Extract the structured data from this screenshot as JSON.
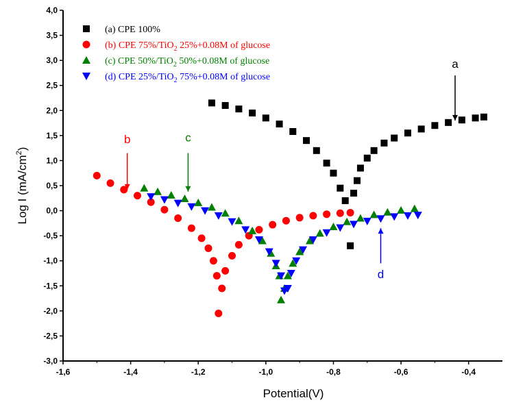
{
  "chart_data": {
    "type": "scatter",
    "xlabel": "Potential(V)",
    "ylabel_main": "Log I (mA/cm",
    "ylabel_sup": "2",
    "ylabel_close": ")",
    "xlim": [
      -1.6,
      -0.3
    ],
    "ylim": [
      -3.0,
      4.0
    ],
    "x_ticks": [
      -1.6,
      -1.4,
      -1.2,
      -1.0,
      -0.8,
      -0.6,
      -0.4
    ],
    "x_tick_labels": [
      "-1,6",
      "-1,4",
      "-1,2",
      "-1,0",
      "-0,8",
      "-0,6",
      "-0,4"
    ],
    "y_ticks": [
      -3.0,
      -2.5,
      -2.0,
      -1.5,
      -1.0,
      -0.5,
      0.0,
      0.5,
      1.0,
      1.5,
      2.0,
      2.5,
      3.0,
      3.5,
      4.0
    ],
    "y_tick_labels": [
      "-3,0",
      "-2,5",
      "-2,0",
      "-1,5",
      "-1,0",
      "-0,5",
      "0,0",
      "0,5",
      "1,0",
      "1,5",
      "2,0",
      "2,5",
      "3,0",
      "3,5",
      "4,0"
    ],
    "grid": false,
    "legend_position": "top-left",
    "series": [
      {
        "id": "a",
        "legend_prefix": "(a) CPE 100%",
        "legend_sub": "",
        "legend_suffix": "",
        "color": "#000000",
        "marker": "square",
        "points": [
          [
            -1.16,
            2.15
          ],
          [
            -1.12,
            2.1
          ],
          [
            -1.08,
            2.03
          ],
          [
            -1.04,
            1.95
          ],
          [
            -1.0,
            1.85
          ],
          [
            -0.96,
            1.73
          ],
          [
            -0.92,
            1.58
          ],
          [
            -0.88,
            1.4
          ],
          [
            -0.85,
            1.2
          ],
          [
            -0.82,
            0.95
          ],
          [
            -0.8,
            0.75
          ],
          [
            -0.78,
            0.45
          ],
          [
            -0.765,
            0.2
          ],
          [
            -0.75,
            -0.7
          ],
          [
            -0.74,
            0.35
          ],
          [
            -0.73,
            0.6
          ],
          [
            -0.72,
            0.85
          ],
          [
            -0.7,
            1.05
          ],
          [
            -0.68,
            1.2
          ],
          [
            -0.65,
            1.35
          ],
          [
            -0.62,
            1.45
          ],
          [
            -0.58,
            1.55
          ],
          [
            -0.54,
            1.63
          ],
          [
            -0.5,
            1.7
          ],
          [
            -0.46,
            1.76
          ],
          [
            -0.42,
            1.81
          ],
          [
            -0.38,
            1.85
          ],
          [
            -0.355,
            1.87
          ]
        ]
      },
      {
        "id": "b",
        "legend_prefix": "(b) CPE 75%/TiO",
        "legend_sub": "2",
        "legend_suffix": " 25%+0.08M of glucose",
        "color": "#ff0000",
        "marker": "circle",
        "points": [
          [
            -1.5,
            0.7
          ],
          [
            -1.46,
            0.55
          ],
          [
            -1.42,
            0.42
          ],
          [
            -1.38,
            0.3
          ],
          [
            -1.34,
            0.17
          ],
          [
            -1.3,
            0.02
          ],
          [
            -1.26,
            -0.15
          ],
          [
            -1.22,
            -0.35
          ],
          [
            -1.19,
            -0.55
          ],
          [
            -1.17,
            -0.75
          ],
          [
            -1.155,
            -1.0
          ],
          [
            -1.145,
            -1.3
          ],
          [
            -1.14,
            -2.05
          ],
          [
            -1.13,
            -1.55
          ],
          [
            -1.12,
            -1.2
          ],
          [
            -1.1,
            -0.9
          ],
          [
            -1.08,
            -0.68
          ],
          [
            -1.05,
            -0.5
          ],
          [
            -1.02,
            -0.38
          ],
          [
            -0.98,
            -0.28
          ],
          [
            -0.94,
            -0.2
          ],
          [
            -0.9,
            -0.14
          ],
          [
            -0.86,
            -0.1
          ],
          [
            -0.82,
            -0.07
          ],
          [
            -0.78,
            -0.05
          ],
          [
            -0.75,
            -0.04
          ]
        ]
      },
      {
        "id": "c",
        "legend_prefix": "(c) CPE 50%/TiO",
        "legend_sub": "2",
        "legend_suffix": " 50%+0.08M of glucose",
        "color": "#008000",
        "marker": "triangle-up",
        "points": [
          [
            -1.36,
            0.45
          ],
          [
            -1.32,
            0.38
          ],
          [
            -1.28,
            0.31
          ],
          [
            -1.24,
            0.24
          ],
          [
            -1.2,
            0.16
          ],
          [
            -1.16,
            0.07
          ],
          [
            -1.12,
            -0.05
          ],
          [
            -1.08,
            -0.2
          ],
          [
            -1.04,
            -0.4
          ],
          [
            -1.01,
            -0.6
          ],
          [
            -0.985,
            -0.85
          ],
          [
            -0.97,
            -1.1
          ],
          [
            -0.96,
            -1.3
          ],
          [
            -0.955,
            -1.78
          ],
          [
            -0.945,
            -1.55
          ],
          [
            -0.935,
            -1.3
          ],
          [
            -0.92,
            -1.05
          ],
          [
            -0.9,
            -0.82
          ],
          [
            -0.87,
            -0.6
          ],
          [
            -0.84,
            -0.45
          ],
          [
            -0.8,
            -0.32
          ],
          [
            -0.76,
            -0.22
          ],
          [
            -0.72,
            -0.15
          ],
          [
            -0.68,
            -0.08
          ],
          [
            -0.64,
            -0.03
          ],
          [
            -0.6,
            0.01
          ],
          [
            -0.56,
            0.04
          ]
        ]
      },
      {
        "id": "d",
        "legend_prefix": "(d) CPE 25%/TiO",
        "legend_sub": "2",
        "legend_suffix": " 75%+0.08M of glucose",
        "color": "#0000ff",
        "marker": "triangle-down",
        "points": [
          [
            -1.34,
            0.28
          ],
          [
            -1.3,
            0.22
          ],
          [
            -1.26,
            0.15
          ],
          [
            -1.22,
            0.08
          ],
          [
            -1.18,
            0.0
          ],
          [
            -1.14,
            -0.1
          ],
          [
            -1.1,
            -0.22
          ],
          [
            -1.06,
            -0.38
          ],
          [
            -1.02,
            -0.58
          ],
          [
            -0.99,
            -0.82
          ],
          [
            -0.97,
            -1.05
          ],
          [
            -0.955,
            -1.3
          ],
          [
            -0.945,
            -1.6
          ],
          [
            -0.935,
            -1.55
          ],
          [
            -0.925,
            -1.25
          ],
          [
            -0.91,
            -1.0
          ],
          [
            -0.89,
            -0.78
          ],
          [
            -0.86,
            -0.58
          ],
          [
            -0.82,
            -0.44
          ],
          [
            -0.78,
            -0.34
          ],
          [
            -0.74,
            -0.27
          ],
          [
            -0.7,
            -0.21
          ],
          [
            -0.66,
            -0.16
          ],
          [
            -0.62,
            -0.12
          ],
          [
            -0.58,
            -0.1
          ],
          [
            -0.55,
            -0.09
          ]
        ]
      }
    ],
    "annotations": [
      {
        "text": "a",
        "color": "#000000",
        "x": -0.44,
        "y_text": 2.85,
        "y_from": 2.7,
        "y_to": 1.8,
        "pos": "above"
      },
      {
        "text": "b",
        "color": "#ff0000",
        "x": -1.41,
        "y_text": 1.35,
        "y_from": 1.15,
        "y_to": 0.42,
        "pos": "above"
      },
      {
        "text": "c",
        "color": "#008000",
        "x": -1.23,
        "y_text": 1.38,
        "y_from": 1.15,
        "y_to": 0.38,
        "pos": "above"
      },
      {
        "text": "d",
        "color": "#0000ff",
        "x": -0.66,
        "y_text": -1.18,
        "y_from": -1.05,
        "y_to": -0.35,
        "pos": "below"
      }
    ]
  }
}
